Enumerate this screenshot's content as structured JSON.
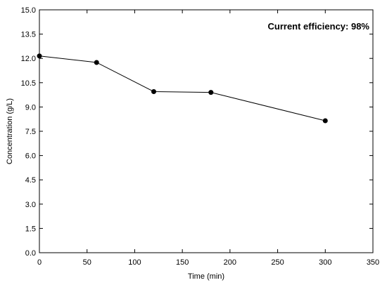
{
  "chart_data": {
    "type": "line",
    "title": "",
    "annotation": "Current efficiency: 98%",
    "xlabel": "Time (min)",
    "ylabel": "Concentration (g/L)",
    "xlim": [
      0,
      350
    ],
    "ylim": [
      0,
      15
    ],
    "xticks": [
      "0",
      "50",
      "100",
      "150",
      "200",
      "250",
      "300",
      "350"
    ],
    "yticks": [
      "0.0",
      "1.5",
      "3.0",
      "4.5",
      "6.0",
      "7.5",
      "9.0",
      "10.5",
      "12.0",
      "13.5",
      "15.0"
    ],
    "grid": false,
    "legend": "none",
    "series": [
      {
        "x": [
          0,
          60,
          120,
          180,
          300
        ],
        "y": [
          12.15,
          11.75,
          9.95,
          9.9,
          8.15
        ],
        "color": "#000000"
      }
    ]
  }
}
